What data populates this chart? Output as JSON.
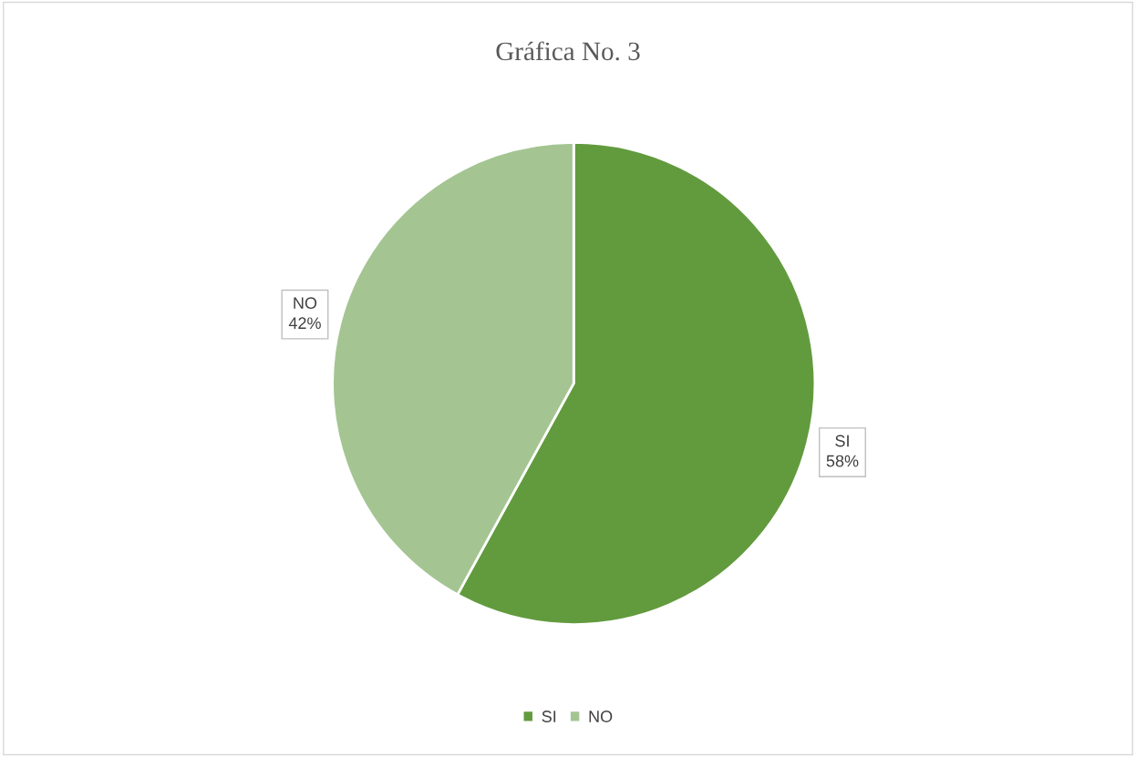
{
  "chart_data": {
    "type": "pie",
    "title": "Gráfica No. 3",
    "categories": [
      "SI",
      "NO"
    ],
    "values": [
      58,
      42
    ],
    "colors": [
      "#629b3e",
      "#a4c592"
    ],
    "value_labels": [
      "58%",
      "42%"
    ],
    "legend": "bottom"
  }
}
